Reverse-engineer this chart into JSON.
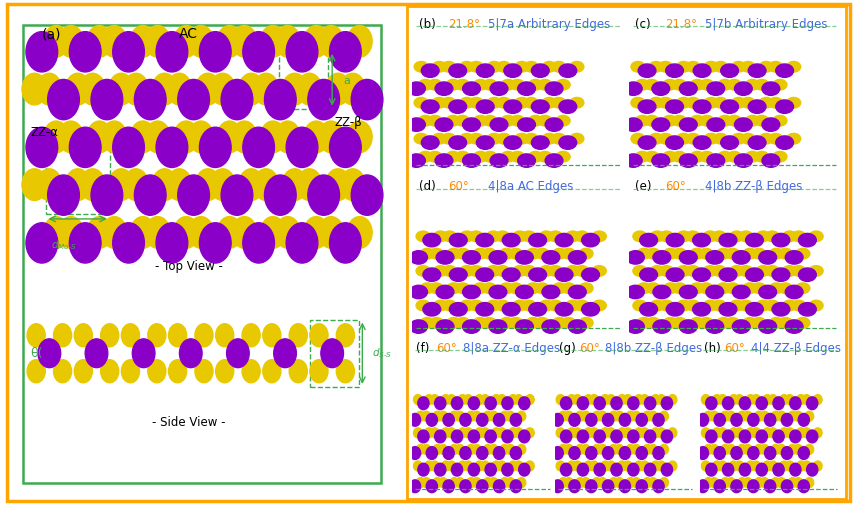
{
  "figure_bg": "#ffffff",
  "outer_border_color": "#FFA500",
  "panel_a_border_color": "#5DBB63",
  "panels": {
    "a": {
      "label": "(a)",
      "sublabel_top": "AC",
      "sublabel_left": "ZZ-α",
      "sublabel_right": "ZZ-β",
      "view1": "- Top View -",
      "view2": "- Side View -",
      "border_color": "#5DBB63"
    },
    "b": {
      "label": "(b)",
      "angle_text": "21.8°",
      "config_text": "5|7a Arbitrary Edges",
      "angle_color": "#FF8C00",
      "config_color": "#4169E1"
    },
    "c": {
      "label": "(c)",
      "angle_text": "21.8°",
      "config_text": "5|7b Arbitrary Edges",
      "angle_color": "#FF8C00",
      "config_color": "#4169E1"
    },
    "d": {
      "label": "(d)",
      "angle_text": "60°",
      "config_text": "4|8a AC Edges",
      "angle_color": "#FF8C00",
      "config_color": "#4169E1"
    },
    "e": {
      "label": "(e)",
      "angle_text": "60°",
      "config_text": "4|8b ZZ-β Edges",
      "angle_color": "#FF8C00",
      "config_color": "#4169E1"
    },
    "f": {
      "label": "(f)",
      "angle_text": "60°",
      "config_text": "8|8a ZZ-α Edges",
      "angle_color": "#FF8C00",
      "config_color": "#4169E1"
    },
    "g": {
      "label": "(g)",
      "angle_text": "60°",
      "config_text": "8|8b ZZ-β Edges",
      "angle_color": "#FF8C00",
      "config_color": "#4169E1"
    },
    "h": {
      "label": "(h)",
      "angle_text": "60°",
      "config_text": "4|4 ZZ-β Edges",
      "angle_color": "#FF8C00",
      "config_color": "#4169E1"
    }
  },
  "atom_Mo_color": "#8B00C9",
  "atom_S_color": "#E8C800",
  "green_color": "#3DAA50"
}
